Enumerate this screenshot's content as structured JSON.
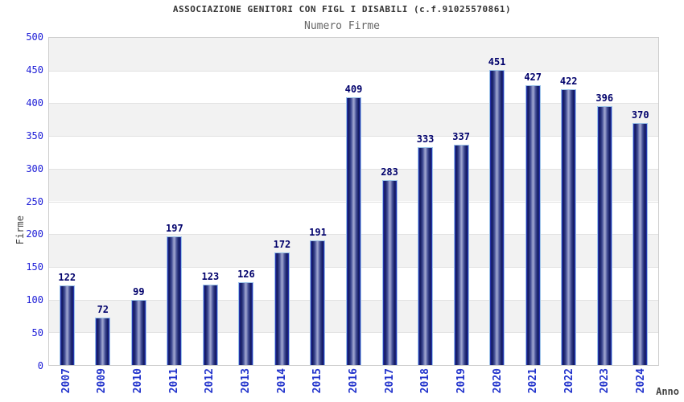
{
  "chart_data": {
    "type": "bar",
    "title": "ASSOCIAZIONE GENITORI CON FIGL I DISABILI (c.f.91025570861)",
    "subtitle": "Numero Firme",
    "xlabel": "Anno",
    "ylabel": "Firme",
    "categories": [
      "2007",
      "2009",
      "2010",
      "2011",
      "2012",
      "2013",
      "2014",
      "2015",
      "2016",
      "2017",
      "2018",
      "2019",
      "2020",
      "2021",
      "2022",
      "2023",
      "2024"
    ],
    "values": [
      122,
      72,
      99,
      197,
      123,
      126,
      172,
      191,
      409,
      283,
      333,
      337,
      451,
      427,
      422,
      396,
      370
    ],
    "ylim": [
      0,
      500
    ],
    "ytick_step": 50,
    "grid": true,
    "legend": "none",
    "bands_alternating": true
  },
  "colors": {
    "title": "#333333",
    "subtitle": "#666666",
    "y_tick_label": "#1a1ad6",
    "x_tick_label": "#2233cc",
    "value_label": "#00006b",
    "axis_title": "#444444",
    "band_gray": "#f2f2f2",
    "band_white": "#ffffff",
    "grid_line": "#e2e2e2",
    "plot_border": "#cccccc",
    "bar_border": "#9cc3e8",
    "bar_edge_bright": "#2d3cc4",
    "bar_dark": "#10175c",
    "bar_mid": "#3c4790",
    "bar_light": "#9aa1cd"
  }
}
